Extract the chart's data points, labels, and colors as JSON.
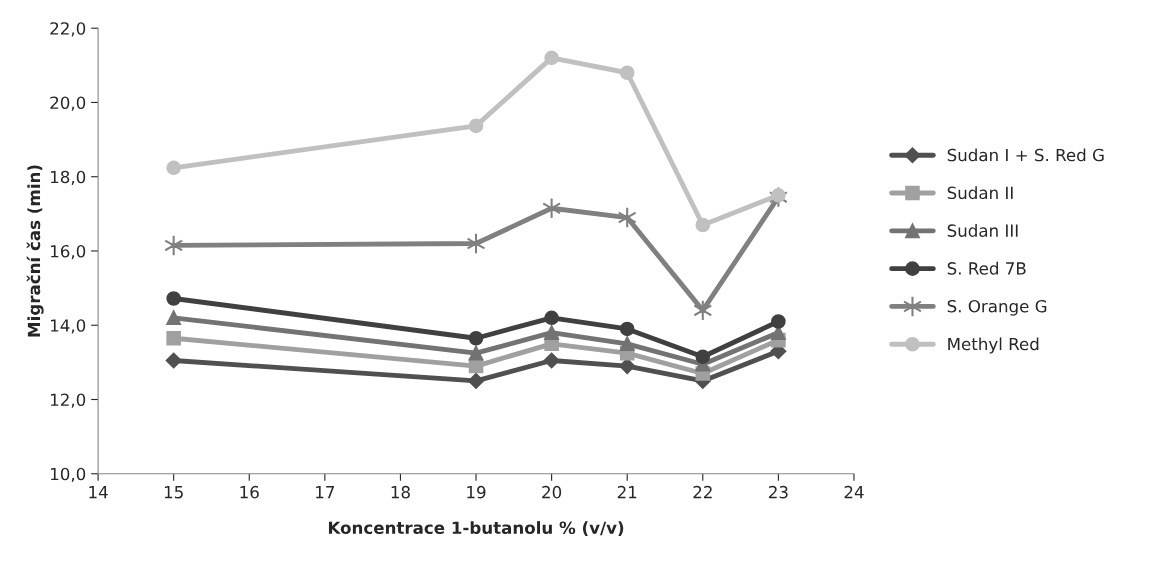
{
  "chart_data": {
    "type": "line",
    "xlabel": "Koncentrace 1-butanolu % (v/v)",
    "ylabel": "Migrační čas (min)",
    "x": [
      15,
      19,
      20,
      21,
      22,
      23
    ],
    "xlim": [
      14,
      24
    ],
    "xticks": [
      14,
      15,
      16,
      17,
      18,
      19,
      20,
      21,
      22,
      23,
      24
    ],
    "ylim": [
      10,
      22
    ],
    "yticks": [
      {
        "value": 10,
        "label": "10,0"
      },
      {
        "value": 12,
        "label": "12,0"
      },
      {
        "value": 14,
        "label": "14,0"
      },
      {
        "value": 16,
        "label": "16,0"
      },
      {
        "value": 18,
        "label": "18,0"
      },
      {
        "value": 20,
        "label": "20,0"
      },
      {
        "value": 22,
        "label": "22,0"
      }
    ],
    "grid": false,
    "legend": "right",
    "line_style": "solid",
    "series": [
      {
        "name": "Sudan I + S. Red G",
        "color": "#505050",
        "marker": "diamond",
        "values": [
          13.05,
          12.5,
          13.05,
          12.9,
          12.5,
          13.3
        ]
      },
      {
        "name": "Sudan II",
        "color": "#a0a0a0",
        "marker": "square",
        "values": [
          13.65,
          12.9,
          13.5,
          13.25,
          12.7,
          13.6
        ]
      },
      {
        "name": "Sudan III",
        "color": "#737373",
        "marker": "triangle",
        "values": [
          14.2,
          13.25,
          13.8,
          13.5,
          12.95,
          13.8
        ]
      },
      {
        "name": "S. Red 7B",
        "color": "#404040",
        "marker": "circle",
        "values": [
          14.72,
          13.65,
          14.2,
          13.9,
          13.15,
          14.1
        ]
      },
      {
        "name": "S. Orange G",
        "color": "#808080",
        "marker": "cross",
        "values": [
          16.15,
          16.2,
          17.15,
          16.9,
          14.4,
          17.45
        ]
      },
      {
        "name": "Methyl Red",
        "color": "#c0c0c0",
        "marker": "circle",
        "values": [
          18.24,
          19.37,
          21.2,
          20.8,
          16.7,
          17.5
        ]
      }
    ]
  }
}
